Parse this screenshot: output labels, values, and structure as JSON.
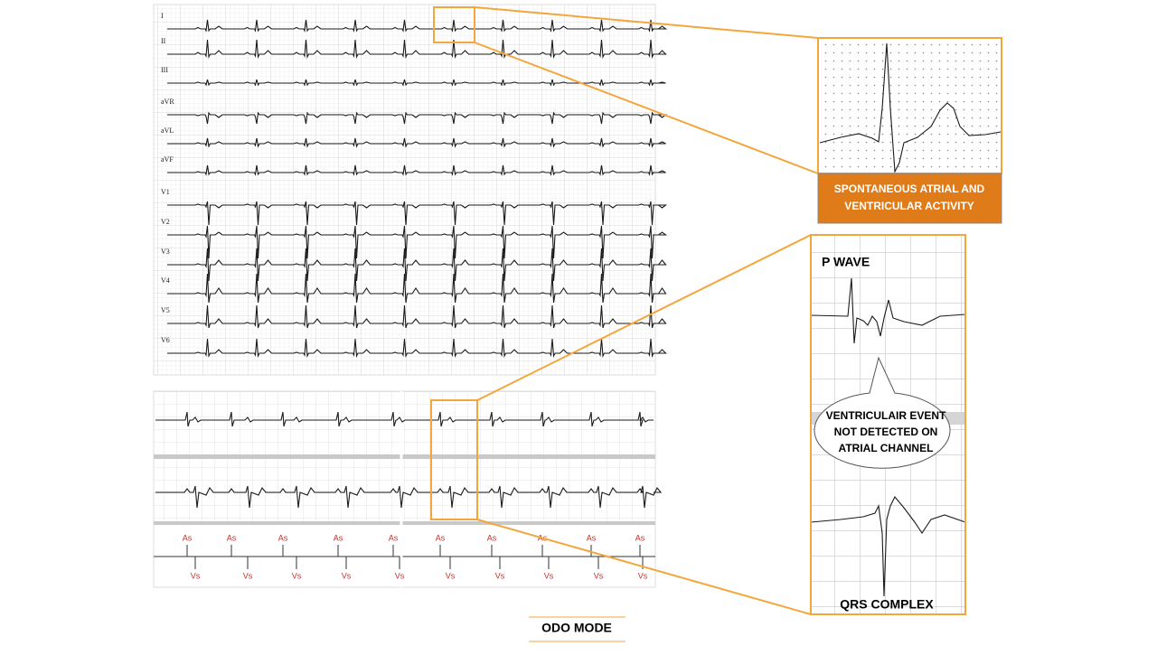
{
  "ecg_leads": [
    "I",
    "II",
    "III",
    "aVR",
    "aVL",
    "aVF",
    "V1",
    "V2",
    "V3",
    "V4",
    "V5",
    "V6"
  ],
  "atrial_markers": [
    "As",
    "As",
    "As",
    "As",
    "As",
    "As",
    "As",
    "As",
    "As",
    "As"
  ],
  "ventricular_markers": [
    "Vs",
    "Vs",
    "Vs",
    "Vs",
    "Vs",
    "Vs",
    "Vs",
    "Vs",
    "Vs",
    "Vs"
  ],
  "callouts": {
    "spontaneous": "SPONTANEOUS ATRIAL AND VENTRICULAR ACTIVITY",
    "p_wave": "P WAVE",
    "ventricular_event": "VENTRICULAIR EVENT NOT DETECTED ON ATRIAL CHANNEL",
    "qrs": "QRS COMPLEX"
  },
  "mode": "ODO MODE"
}
